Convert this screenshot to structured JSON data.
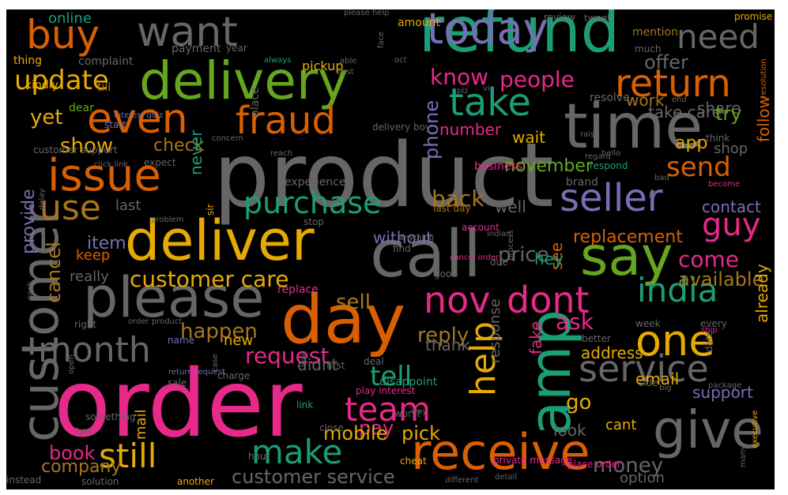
{
  "colors": {
    "background": "#000000",
    "green": "#1b9e77",
    "orange": "#d95f02",
    "purple": "#7570b3",
    "pink": "#e7298a",
    "lime": "#66a61e",
    "gold": "#e6ab02",
    "brown": "#a6761d",
    "gray": "#666666"
  },
  "words": [
    {
      "text": "product",
      "color": "gray"
    },
    {
      "text": "order",
      "color": "pink"
    },
    {
      "text": "refund",
      "color": "green"
    },
    {
      "text": "delivery",
      "color": "lime"
    },
    {
      "text": "call",
      "color": "gray"
    },
    {
      "text": "time",
      "color": "gray"
    },
    {
      "text": "day",
      "color": "orange"
    },
    {
      "text": "please",
      "color": "gray"
    },
    {
      "text": "customer",
      "color": "gray"
    },
    {
      "text": "amp",
      "color": "green"
    },
    {
      "text": "say",
      "color": "lime"
    },
    {
      "text": "deliver",
      "color": "gold"
    },
    {
      "text": "receive",
      "color": "orange"
    },
    {
      "text": "give",
      "color": "gray"
    },
    {
      "text": "issue",
      "color": "orange"
    },
    {
      "text": "today",
      "color": "purple"
    },
    {
      "text": "buy",
      "color": "orange"
    },
    {
      "text": "want",
      "color": "gray"
    },
    {
      "text": "even",
      "color": "orange"
    },
    {
      "text": "fraud",
      "color": "orange"
    },
    {
      "text": "take",
      "color": "green"
    },
    {
      "text": "return",
      "color": "orange"
    },
    {
      "text": "need",
      "color": "gray"
    },
    {
      "text": "seller",
      "color": "purple"
    },
    {
      "text": "one",
      "color": "gold"
    },
    {
      "text": "help",
      "color": "gold"
    },
    {
      "text": "service",
      "color": "gray"
    },
    {
      "text": "month",
      "color": "gray"
    },
    {
      "text": "still",
      "color": "gold"
    },
    {
      "text": "make",
      "color": "green"
    },
    {
      "text": "team",
      "color": "pink"
    },
    {
      "text": "nov",
      "color": "pink"
    },
    {
      "text": "dont",
      "color": "pink"
    },
    {
      "text": "india",
      "color": "green"
    },
    {
      "text": "use",
      "color": "brown"
    },
    {
      "text": "update",
      "color": "gold"
    },
    {
      "text": "send",
      "color": "orange"
    },
    {
      "text": "guy",
      "color": "pink"
    },
    {
      "text": "purchase",
      "color": "green"
    },
    {
      "text": "customer care",
      "color": "gold"
    },
    {
      "text": "tell",
      "color": "green"
    },
    {
      "text": "request",
      "color": "pink"
    },
    {
      "text": "people",
      "color": "pink"
    },
    {
      "text": "know",
      "color": "pink"
    },
    {
      "text": "phone",
      "color": "purple"
    },
    {
      "text": "back",
      "color": "brown"
    },
    {
      "text": "show",
      "color": "gold"
    },
    {
      "text": "provide",
      "color": "purple"
    },
    {
      "text": "cancel",
      "color": "brown"
    },
    {
      "text": "come",
      "color": "pink"
    },
    {
      "text": "sell",
      "color": "brown"
    },
    {
      "text": "reply",
      "color": "brown"
    },
    {
      "text": "ask",
      "color": "pink"
    },
    {
      "text": "go",
      "color": "gold"
    },
    {
      "text": "pay",
      "color": "pink"
    },
    {
      "text": "mobile",
      "color": "gold"
    },
    {
      "text": "pick",
      "color": "gold"
    },
    {
      "text": "money",
      "color": "gray"
    },
    {
      "text": "customer service",
      "color": "gray"
    },
    {
      "text": "book",
      "color": "pink"
    },
    {
      "text": "company",
      "color": "brown"
    },
    {
      "text": "yet",
      "color": "gold"
    },
    {
      "text": "offer",
      "color": "gray"
    },
    {
      "text": "november",
      "color": "lime"
    },
    {
      "text": "available",
      "color": "brown"
    },
    {
      "text": "replacement",
      "color": "orange"
    },
    {
      "text": "check",
      "color": "brown"
    },
    {
      "text": "wait",
      "color": "gold"
    },
    {
      "text": "number",
      "color": "pink"
    },
    {
      "text": "take care",
      "color": "gray"
    },
    {
      "text": "share",
      "color": "gray"
    },
    {
      "text": "work",
      "color": "brown"
    },
    {
      "text": "try",
      "color": "lime"
    },
    {
      "text": "app",
      "color": "gold"
    },
    {
      "text": "shop",
      "color": "gray"
    },
    {
      "text": "follow",
      "color": "orange"
    },
    {
      "text": "contact",
      "color": "purple"
    },
    {
      "text": "well",
      "color": "gray"
    },
    {
      "text": "price",
      "color": "gray"
    },
    {
      "text": "see",
      "color": "orange"
    },
    {
      "text": "hey",
      "color": "green"
    },
    {
      "text": "fake",
      "color": "pink"
    },
    {
      "text": "without",
      "color": "purple"
    },
    {
      "text": "really",
      "color": "gray"
    },
    {
      "text": "keep",
      "color": "orange"
    },
    {
      "text": "item",
      "color": "purple"
    },
    {
      "text": "last",
      "color": "gray"
    },
    {
      "text": "never",
      "color": "green"
    },
    {
      "text": "happen",
      "color": "brown"
    },
    {
      "text": "new",
      "color": "gold"
    },
    {
      "text": "thank",
      "color": "gray"
    },
    {
      "text": "didnt",
      "color": "gray"
    },
    {
      "text": "address",
      "color": "gold"
    },
    {
      "text": "email",
      "color": "gold"
    },
    {
      "text": "response",
      "color": "gray"
    },
    {
      "text": "look",
      "color": "gray"
    },
    {
      "text": "already",
      "color": "gold"
    },
    {
      "text": "support",
      "color": "purple"
    },
    {
      "text": "cant",
      "color": "gold"
    },
    {
      "text": "option",
      "color": "gray"
    },
    {
      "text": "mail",
      "color": "gold"
    },
    {
      "text": "online",
      "color": "green"
    },
    {
      "text": "thing",
      "color": "gold"
    },
    {
      "text": "complaint",
      "color": "gray"
    },
    {
      "text": "payment",
      "color": "gray"
    },
    {
      "text": "pickup",
      "color": "gold"
    },
    {
      "text": "kindly",
      "color": "gold"
    },
    {
      "text": "dear",
      "color": "lime"
    },
    {
      "text": "till",
      "color": "brown"
    },
    {
      "text": "please help",
      "color": "gray"
    },
    {
      "text": "amount",
      "color": "gold"
    },
    {
      "text": "review",
      "color": "gray"
    },
    {
      "text": "tweet",
      "color": "gray"
    },
    {
      "text": "promise",
      "color": "gold"
    },
    {
      "text": "mention",
      "color": "brown"
    },
    {
      "text": "much",
      "color": "gray"
    },
    {
      "text": "year",
      "color": "gray"
    },
    {
      "text": "always",
      "color": "green"
    },
    {
      "text": "best",
      "color": "gray"
    },
    {
      "text": "face",
      "color": "gray"
    },
    {
      "text": "oct",
      "color": "gray"
    },
    {
      "text": "plz",
      "color": "gray"
    },
    {
      "text": "via",
      "color": "gray"
    },
    {
      "text": "resolve",
      "color": "gray"
    },
    {
      "text": "end",
      "color": "gray"
    },
    {
      "text": "resolution",
      "color": "orange"
    },
    {
      "text": "start",
      "color": "purple"
    },
    {
      "text": "interest quiz",
      "color": "purple"
    },
    {
      "text": "able",
      "color": "gray"
    },
    {
      "text": "delivery boy",
      "color": "gray"
    },
    {
      "text": "raise",
      "color": "gray"
    },
    {
      "text": "think",
      "color": "gray"
    },
    {
      "text": "hello",
      "color": "gray"
    },
    {
      "text": "bad",
      "color": "gray"
    },
    {
      "text": "become",
      "color": "pink"
    },
    {
      "text": "pl",
      "color": "gray"
    },
    {
      "text": "regard",
      "color": "gray"
    },
    {
      "text": "concern",
      "color": "gray"
    },
    {
      "text": "reach",
      "color": "gray"
    },
    {
      "text": "place",
      "color": "gray"
    },
    {
      "text": "customer support",
      "color": "gray"
    },
    {
      "text": "click link",
      "color": "gray"
    },
    {
      "text": "expect",
      "color": "gray"
    },
    {
      "text": "business",
      "color": "pink"
    },
    {
      "text": "respond",
      "color": "green"
    },
    {
      "text": "brand",
      "color": "gray"
    },
    {
      "text": "delay",
      "color": "gray"
    },
    {
      "text": "experience",
      "color": "gray"
    },
    {
      "text": "problem",
      "color": "gray"
    },
    {
      "text": "sir",
      "color": "gold"
    },
    {
      "text": "stop",
      "color": "gray"
    },
    {
      "text": "last day",
      "color": "brown"
    },
    {
      "text": "account",
      "color": "pink"
    },
    {
      "text": "indian",
      "color": "gray"
    },
    {
      "text": "anything",
      "color": "gray"
    },
    {
      "text": "find",
      "color": "gray"
    },
    {
      "text": "due",
      "color": "gray"
    },
    {
      "text": "process",
      "color": "gray"
    },
    {
      "text": "cancel order",
      "color": "pink"
    },
    {
      "text": "good",
      "color": "gray"
    },
    {
      "text": "replace",
      "color": "pink"
    },
    {
      "text": "pack",
      "color": "gray"
    },
    {
      "text": "right",
      "color": "gray"
    },
    {
      "text": "order product",
      "color": "gray"
    },
    {
      "text": "week",
      "color": "gray"
    },
    {
      "text": "every",
      "color": "gray"
    },
    {
      "text": "ship",
      "color": "pink"
    },
    {
      "text": "better",
      "color": "gray"
    },
    {
      "text": "date",
      "color": "gray"
    },
    {
      "text": "name",
      "color": "purple"
    },
    {
      "text": "return request",
      "color": "purple"
    },
    {
      "text": "case",
      "color": "gray"
    },
    {
      "text": "sale",
      "color": "gray"
    },
    {
      "text": "charge",
      "color": "gray"
    },
    {
      "text": "deal",
      "color": "gray"
    },
    {
      "text": "first",
      "color": "gray"
    },
    {
      "text": "disappoint",
      "color": "green"
    },
    {
      "text": "play interest",
      "color": "pink"
    },
    {
      "text": "lose",
      "color": "gray"
    },
    {
      "text": "link",
      "color": "green"
    },
    {
      "text": "worst",
      "color": "gray"
    },
    {
      "text": "way",
      "color": "gray"
    },
    {
      "text": "big",
      "color": "gray"
    },
    {
      "text": "side",
      "color": "gray"
    },
    {
      "text": "package",
      "color": "gray"
    },
    {
      "text": "close",
      "color": "gray"
    },
    {
      "text": "something",
      "color": "gray"
    },
    {
      "text": "open",
      "color": "gray"
    },
    {
      "text": "two",
      "color": "gray"
    },
    {
      "text": "hour",
      "color": "gray"
    },
    {
      "text": "cheat",
      "color": "gold"
    },
    {
      "text": "private message",
      "color": "pink"
    },
    {
      "text": "many",
      "color": "gray"
    },
    {
      "text": "place order",
      "color": "pink"
    },
    {
      "text": "executive",
      "color": "gold"
    },
    {
      "text": "instead",
      "color": "gray"
    },
    {
      "text": "solution",
      "color": "gray"
    },
    {
      "text": "another",
      "color": "gold"
    },
    {
      "text": "different",
      "color": "gray"
    },
    {
      "text": "detail",
      "color": "gray"
    }
  ]
}
